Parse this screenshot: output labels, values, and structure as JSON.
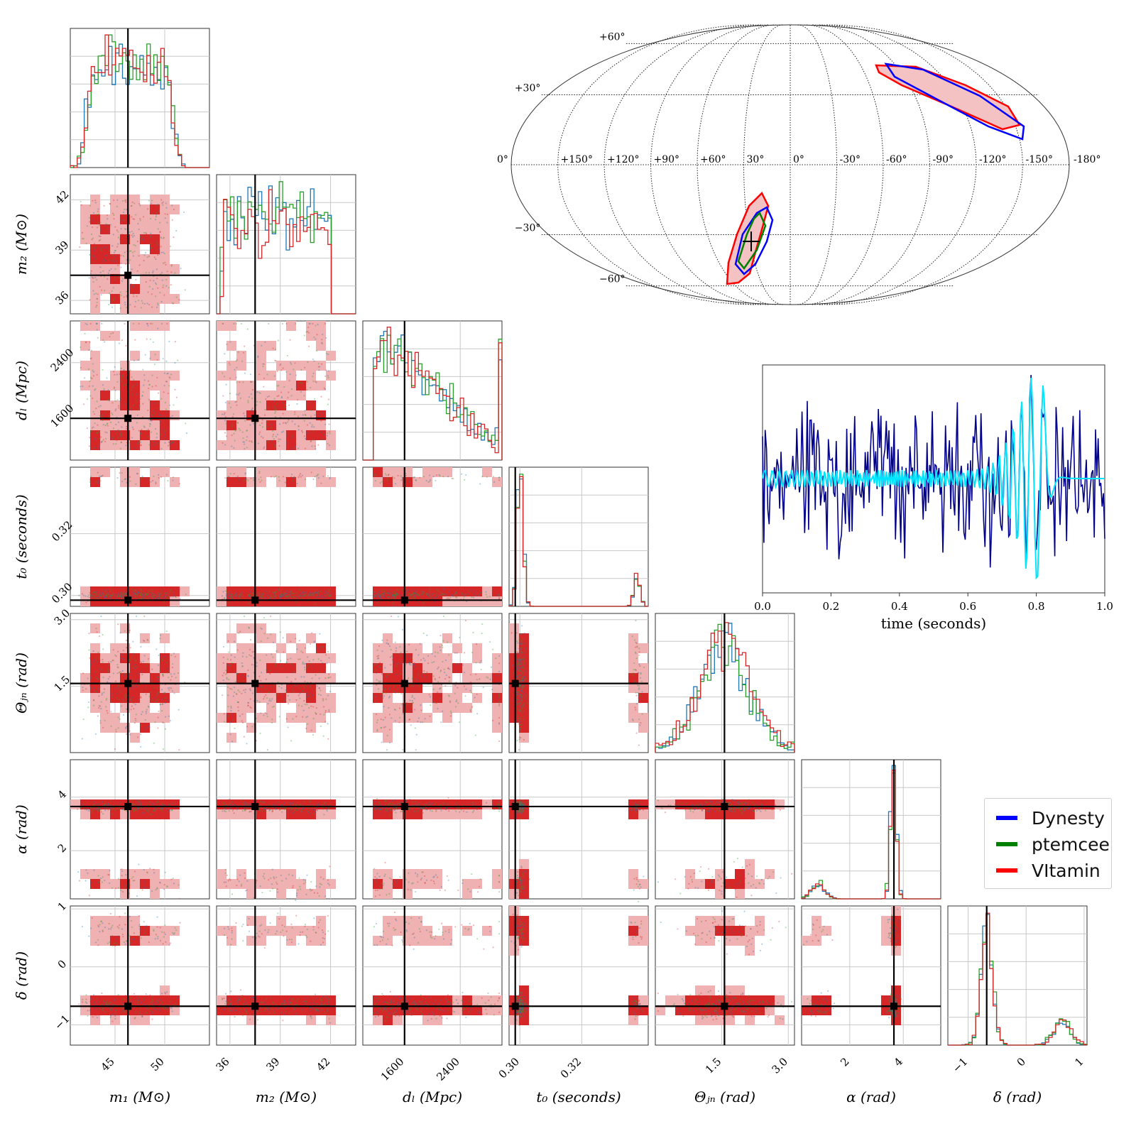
{
  "chart_data": {
    "type": "corner",
    "parameters": [
      {
        "key": "m1",
        "label": "m₁ (M⊙)",
        "ticks": [
          "45",
          "50"
        ],
        "tick_values": [
          45,
          50
        ],
        "range": [
          40.5,
          54.5
        ],
        "truth": 46.3
      },
      {
        "key": "m2",
        "label": "m₂ (M⊙)",
        "ticks": [
          "36",
          "39",
          "42"
        ],
        "tick_values": [
          36,
          39,
          42
        ],
        "range": [
          35.2,
          43.5
        ],
        "truth": 37.5
      },
      {
        "key": "dL",
        "label": "dₗ (Mpc)",
        "ticks": [
          "1600",
          "2400"
        ],
        "tick_values": [
          1600,
          2400
        ],
        "range": [
          1000,
          3000
        ],
        "truth": 1600
      },
      {
        "key": "t0",
        "label": "t₀ (seconds)",
        "ticks": [
          "0.30",
          "0.32"
        ],
        "tick_values": [
          0.3,
          0.32
        ],
        "range": [
          0.2965,
          0.3415
        ],
        "truth": 0.2985
      },
      {
        "key": "theta_jn",
        "label": "Θⱼₙ (rad)",
        "ticks": [
          "1.5",
          "3.0"
        ],
        "tick_values": [
          1.5,
          3.0
        ],
        "range": [
          0.0,
          3.14
        ],
        "truth": 1.56
      },
      {
        "key": "alpha",
        "label": "α (rad)",
        "ticks": [
          "2",
          "4"
        ],
        "tick_values": [
          2,
          4
        ],
        "range": [
          0.2,
          5.4
        ],
        "truth": 3.65
      },
      {
        "key": "delta",
        "label": "δ (rad)",
        "ticks": [
          "−1",
          "0",
          "1"
        ],
        "tick_values": [
          -1,
          0,
          1
        ],
        "range": [
          -1.35,
          1.05
        ],
        "truth": -0.68
      }
    ],
    "series": [
      {
        "name": "Dynesty",
        "color": "#1f77b4",
        "legend_color": "#0000ff"
      },
      {
        "name": "ptemcee",
        "color": "#2ca02c",
        "legend_color": "#008000"
      },
      {
        "name": "VItamin",
        "color": "#d62728",
        "legend_color": "#ff0000"
      }
    ],
    "inset_waveform": {
      "xlabel": "time (seconds)",
      "xticks": [
        "0.0",
        "0.2",
        "0.4",
        "0.6",
        "0.8",
        "1.0"
      ],
      "xlim": [
        0.0,
        1.0
      ],
      "noisy_color": "#00008b",
      "signal_color": "#00e5ff",
      "merger_time": 0.8
    },
    "sky_map": {
      "projection": "mollweide",
      "lon_labels": [
        "+150°",
        "+120°",
        "+90°",
        "+60°",
        "30°",
        "0°",
        "-30°",
        "-60°",
        "-90°",
        "-120°",
        "-150°",
        "-180°"
      ],
      "lon_values": [
        150,
        120,
        90,
        60,
        30,
        0,
        -30,
        -60,
        -90,
        -120,
        -150,
        -180
      ],
      "edge_label": "0°",
      "lat_labels": [
        "+60°",
        "+30°",
        "−30°",
        "−60°"
      ],
      "lat_values": [
        60,
        30,
        -30,
        -60
      ],
      "truth_lon": 40,
      "truth_lat": -38
    }
  }
}
